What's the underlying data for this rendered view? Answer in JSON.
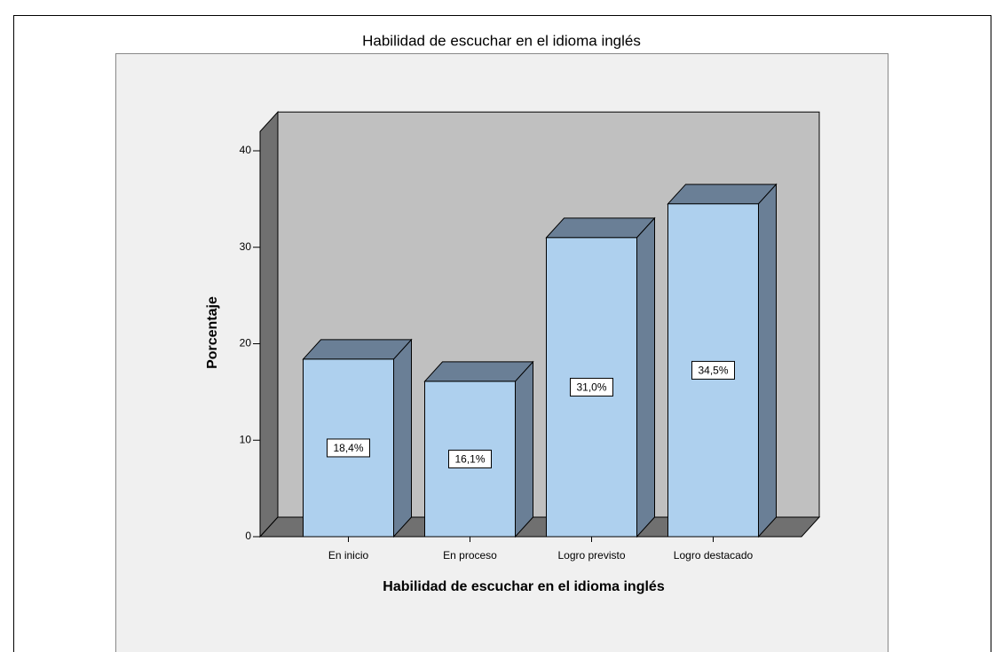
{
  "chart_data": {
    "type": "bar3d",
    "title": "Habilidad de escuchar en el idioma inglés",
    "xlabel": "Habilidad de escuchar en el idioma inglés",
    "ylabel": "Porcentaje",
    "categories": [
      "En inicio",
      "En proceso",
      "Logro previsto",
      "Logro destacado"
    ],
    "values": [
      18.4,
      16.1,
      31.0,
      34.5
    ],
    "value_labels": [
      "18,4%",
      "16,1%",
      "31,0%",
      "34,5%"
    ],
    "color": "#aed0ee",
    "ylim": [
      0,
      42
    ],
    "yticks": [
      0,
      10,
      20,
      30,
      40
    ]
  }
}
